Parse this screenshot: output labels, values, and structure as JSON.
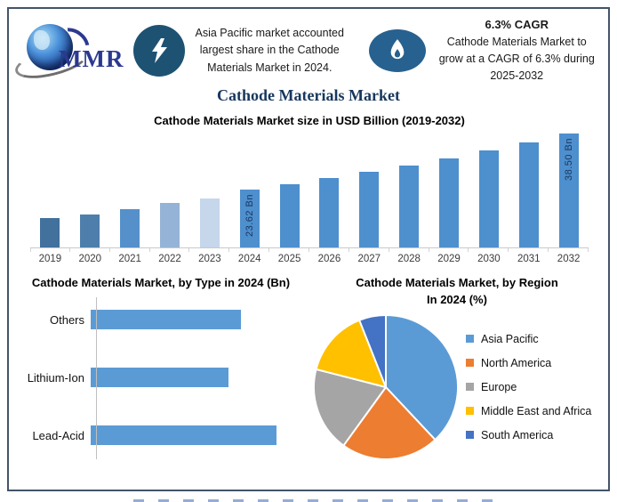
{
  "header": {
    "logo_label": "MMR",
    "left_callout": {
      "text": "Asia Pacific market accounted largest share in the Cathode Materials Market in 2024."
    },
    "right_callout": {
      "title": "6.3% CAGR",
      "text": "Cathode Materials Market to grow at a CAGR of 6.3% during 2025-2032"
    }
  },
  "main_title": "Cathode Materials Market",
  "colors": {
    "frame_border": "#44546A",
    "navy_title": "#17375D",
    "primary_bar_blue": "#4E8FCE",
    "icon_teal": "#1E5272",
    "icon_blue": "#27618F"
  },
  "chart_data": [
    {
      "type": "bar",
      "title": "Cathode Materials Market size in USD Billion (2019-2032)",
      "categories": [
        "2019",
        "2020",
        "2021",
        "2022",
        "2023",
        "2024",
        "2025",
        "2026",
        "2027",
        "2028",
        "2029",
        "2030",
        "2031",
        "2032"
      ],
      "values": [
        16.0,
        17.1,
        18.5,
        20.1,
        21.3,
        23.62,
        25.11,
        26.69,
        28.37,
        30.16,
        32.06,
        34.08,
        36.22,
        38.5
      ],
      "ylabel": "USD Billion",
      "xlabel": "",
      "ylim": [
        8.3,
        40
      ],
      "grid": false,
      "legend": false,
      "data_labels": {
        "2024": "23.62 Bn",
        "2032": "38.50 Bn"
      },
      "bar_colors": [
        "#41719C",
        "#4E7FAC",
        "#5590CB",
        "#95B3D7",
        "#C6D6EB",
        "#4E8FCE",
        "#4E8FCE",
        "#4E8FCE",
        "#4E8FCE",
        "#4E8FCE",
        "#4E8FCE",
        "#4E8FCE",
        "#4E8FCE",
        "#4E8FCE"
      ]
    },
    {
      "type": "bar",
      "orientation": "horizontal",
      "title": "Cathode Materials Market, by Type in 2024 (Bn)",
      "categories": [
        "Others",
        "Lithium-Ion",
        "Lead-Acid"
      ],
      "values": [
        7.5,
        6.9,
        9.3
      ],
      "xlim": [
        0,
        10
      ],
      "bar_color": "#5B9BD5",
      "grid": false,
      "legend": false
    },
    {
      "type": "pie",
      "title": "Cathode Materials Market, by Region In 2024 (%)",
      "title_line1": "Cathode Materials Market, by Region",
      "title_line2": "In 2024 (%)",
      "labels": [
        "Asia Pacific",
        "North America",
        "Europe",
        "Middle East and Africa",
        "South America"
      ],
      "values": [
        38,
        22,
        19,
        15,
        6
      ],
      "colors": [
        "#5B9BD5",
        "#ED7D31",
        "#A5A5A5",
        "#FFC000",
        "#4472C4"
      ],
      "legend_position": "right",
      "start_angle_deg": 0
    }
  ]
}
